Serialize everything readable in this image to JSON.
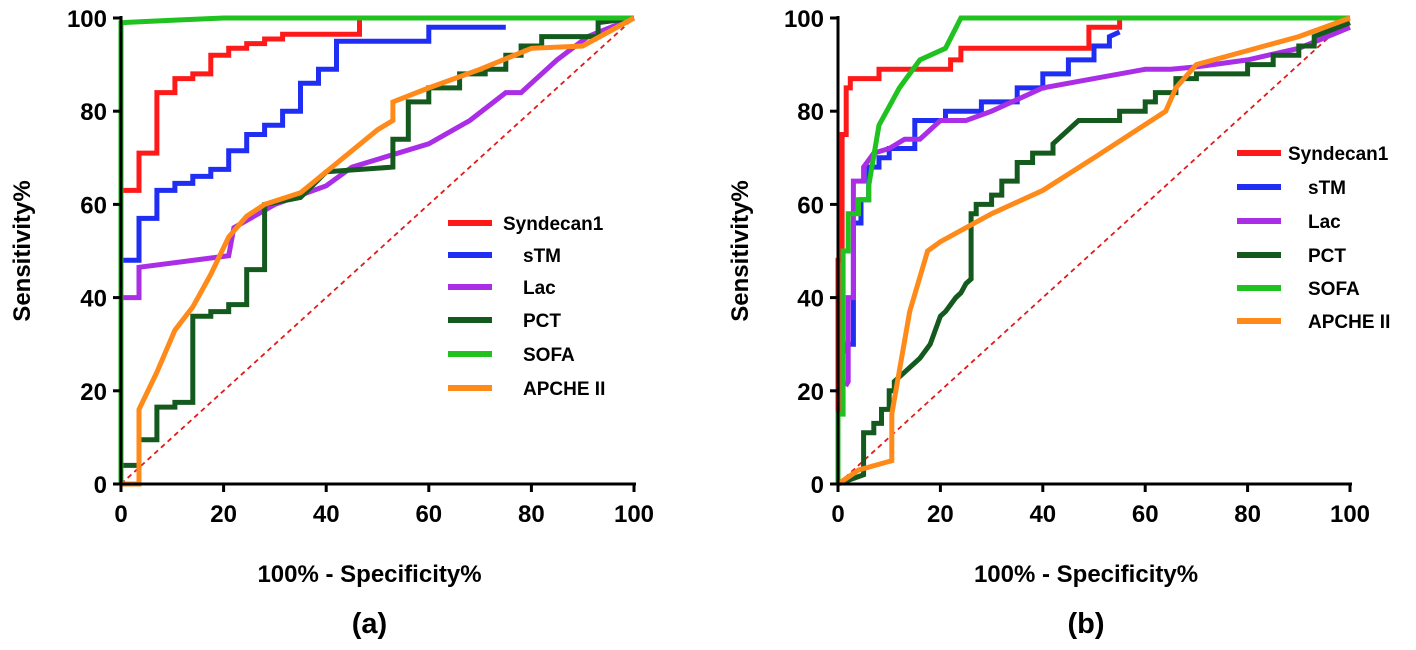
{
  "colors": {
    "syndecan1": "#ff1a1a",
    "stm": "#1f2ef2",
    "lac": "#aa2ee6",
    "pct": "#145a1e",
    "sofa": "#1fc21f",
    "apche2": "#ff8a1a",
    "reference": "#e01b1b"
  },
  "chart_data": [
    {
      "type": "line",
      "panel_label": "(a)",
      "xlabel": "100% - Specificity%",
      "ylabel": "Sensitivity%",
      "xlim": [
        0,
        100
      ],
      "ylim": [
        0,
        100
      ],
      "xticks": [
        "0",
        "20",
        "40",
        "60",
        "80",
        "100"
      ],
      "yticks": [
        "0",
        "20",
        "40",
        "60",
        "80",
        "100"
      ],
      "legend": [
        "Syndecan1",
        "sTM",
        "Lac",
        "PCT",
        "SOFA",
        "APCHE II"
      ],
      "legend_position": "center-right",
      "series": [
        {
          "name": "Syndecan1",
          "color_key": "syndecan1",
          "x": [
            0,
            0,
            3.5,
            3.5,
            7,
            7,
            10.5,
            10.5,
            14,
            14,
            17.5,
            17.5,
            21,
            21,
            24.5,
            24.5,
            28,
            28,
            31.5,
            31.5,
            46.5,
            46.5,
            100
          ],
          "y": [
            0,
            63,
            63,
            71,
            71,
            84,
            84,
            87,
            87,
            88,
            88,
            92,
            92,
            93.5,
            93.5,
            94.5,
            94.5,
            95.5,
            95.5,
            96.5,
            96.5,
            100,
            100
          ]
        },
        {
          "name": "sTM",
          "color_key": "stm",
          "x": [
            0,
            0,
            3.5,
            3.5,
            7,
            7,
            10.5,
            10.5,
            14,
            14,
            17.5,
            17.5,
            21,
            21,
            24.5,
            24.5,
            28,
            28,
            31.5,
            31.5,
            35,
            35,
            38.5,
            38.5,
            42,
            42,
            60,
            60,
            75
          ],
          "y": [
            0,
            48,
            48,
            57,
            57,
            63,
            63,
            64.5,
            64.5,
            66,
            66,
            67.5,
            67.5,
            71.5,
            71.5,
            75,
            75,
            77,
            77,
            80,
            80,
            86,
            86,
            89,
            89,
            95,
            95,
            98,
            98
          ]
        },
        {
          "name": "Lac",
          "color_key": "lac",
          "x": [
            0,
            0,
            3.5,
            3.5,
            21,
            22,
            30,
            40,
            45,
            60,
            68,
            75,
            78,
            80,
            85,
            91,
            100
          ],
          "y": [
            0,
            40,
            40,
            46.5,
            49,
            55,
            60,
            64,
            68,
            73,
            78,
            84,
            84,
            86,
            91,
            96,
            100
          ]
        },
        {
          "name": "PCT",
          "color_key": "pct",
          "x": [
            0,
            0,
            3.5,
            3.5,
            7,
            7,
            10.5,
            10.5,
            14,
            14,
            17.5,
            17.5,
            21,
            21,
            24.5,
            24.5,
            28,
            28,
            35,
            40,
            53,
            53,
            56,
            56,
            60,
            60,
            66,
            66,
            71,
            71,
            75,
            75,
            78,
            78,
            82,
            82,
            93,
            93,
            100
          ],
          "y": [
            0,
            4,
            4,
            9.5,
            9.5,
            16.5,
            16.5,
            17.5,
            17.5,
            36,
            36,
            37,
            37,
            38.5,
            38.5,
            46,
            46,
            60,
            61.5,
            67,
            68,
            74,
            74,
            82,
            82,
            85,
            85,
            88,
            88,
            89,
            89,
            92,
            92,
            94,
            94,
            96,
            96,
            99,
            100
          ]
        },
        {
          "name": "SOFA",
          "color_key": "sofa",
          "x": [
            0,
            0,
            10,
            20,
            60,
            100
          ],
          "y": [
            0,
            99,
            99.5,
            100,
            100,
            100
          ]
        },
        {
          "name": "APCHE II",
          "color_key": "apche2",
          "x": [
            0,
            3.5,
            3.5,
            7,
            10.5,
            14,
            17.5,
            21,
            24.5,
            28,
            35,
            40,
            50,
            53,
            53,
            60,
            70,
            80,
            90,
            100
          ],
          "y": [
            0,
            0,
            16,
            24,
            33,
            38,
            45,
            53,
            57.5,
            60,
            62.5,
            67,
            76,
            78,
            82,
            85,
            89,
            93.5,
            94,
            100
          ]
        }
      ]
    },
    {
      "type": "line",
      "panel_label": "(b)",
      "xlabel": "100% - Specificity%",
      "ylabel": "Sensitivity%",
      "xlim": [
        0,
        100
      ],
      "ylim": [
        0,
        100
      ],
      "xticks": [
        "0",
        "20",
        "40",
        "60",
        "80",
        "100"
      ],
      "yticks": [
        "0",
        "20",
        "40",
        "60",
        "80",
        "100"
      ],
      "legend": [
        "Syndecan1",
        "sTM",
        "Lac",
        "PCT",
        "SOFA",
        "APCHE II"
      ],
      "legend_position": "center-right",
      "series": [
        {
          "name": "Syndecan1",
          "color_key": "syndecan1",
          "x": [
            0,
            0,
            0.8,
            0.8,
            1.6,
            1.6,
            2.4,
            2.4,
            8,
            8,
            22,
            22,
            24,
            24,
            49,
            49,
            55,
            55,
            100
          ],
          "y": [
            0,
            48,
            48,
            75,
            75,
            85,
            85,
            87,
            87,
            89,
            89,
            91,
            91,
            93.5,
            93.5,
            98,
            98,
            100,
            100
          ]
        },
        {
          "name": "sTM",
          "color_key": "stm",
          "x": [
            1.5,
            1.5,
            3,
            3,
            4.5,
            4.5,
            6,
            6,
            8,
            8,
            10,
            10,
            15,
            15,
            21,
            21,
            28,
            28,
            35,
            35,
            40,
            40,
            45,
            45,
            50,
            50,
            53,
            53,
            55
          ],
          "y": [
            28,
            30,
            30,
            56,
            56,
            61,
            61,
            68,
            68,
            70,
            70,
            72,
            72,
            78,
            78,
            80,
            80,
            82,
            82,
            85,
            85,
            88,
            88,
            91,
            91,
            94,
            94,
            96,
            97
          ]
        },
        {
          "name": "Lac",
          "color_key": "lac",
          "x": [
            1.5,
            2,
            2,
            3,
            3,
            5,
            5,
            7,
            10,
            13,
            16,
            20,
            25,
            30,
            40,
            50,
            60,
            65,
            70,
            80,
            90,
            100
          ],
          "y": [
            21,
            22,
            40,
            40,
            65,
            65,
            68,
            71,
            72,
            74,
            74,
            78,
            78,
            80,
            85,
            87,
            89,
            89,
            89.5,
            91,
            93.5,
            98
          ]
        },
        {
          "name": "PCT",
          "color_key": "pct",
          "x": [
            0,
            5,
            5,
            7,
            7,
            8.5,
            8.5,
            10,
            10,
            11,
            11,
            13,
            16,
            18,
            19,
            20,
            21,
            23,
            24,
            25,
            26,
            26,
            27,
            27,
            30,
            30,
            32,
            32,
            35,
            35,
            38,
            38,
            42,
            42,
            47,
            55,
            55,
            60,
            60,
            62,
            62,
            66,
            66,
            70,
            70,
            80,
            80,
            85,
            85,
            90,
            90,
            93,
            93,
            100
          ],
          "y": [
            0,
            2,
            11,
            11,
            13,
            13,
            16,
            16,
            20,
            20,
            22,
            24,
            27,
            30,
            33,
            36,
            37,
            40,
            41,
            43,
            44,
            58,
            58,
            60,
            60,
            62,
            62,
            65,
            65,
            69,
            69,
            71,
            71,
            73,
            78,
            78,
            80,
            80,
            82,
            82,
            84,
            84,
            87,
            87,
            88,
            88,
            90,
            90,
            92,
            92,
            94,
            94,
            96,
            99
          ]
        },
        {
          "name": "SOFA",
          "color_key": "sofa",
          "x": [
            0,
            0,
            1,
            1,
            2,
            2,
            4,
            4,
            6,
            6,
            8,
            12,
            16,
            21,
            24,
            24,
            60,
            100
          ],
          "y": [
            0,
            15,
            15,
            50,
            50,
            58,
            58,
            61,
            61,
            64,
            77,
            85,
            91,
            93.5,
            100,
            100,
            100,
            100
          ]
        },
        {
          "name": "APCHE II",
          "color_key": "apche2",
          "x": [
            0,
            4,
            10.5,
            10.5,
            14,
            17.5,
            20,
            25,
            30,
            40,
            50,
            64,
            66,
            70,
            80,
            90,
            100
          ],
          "y": [
            0,
            3,
            5,
            15,
            37,
            50,
            52,
            55,
            58,
            63,
            70,
            80,
            85,
            90,
            93,
            96,
            100
          ]
        }
      ]
    }
  ]
}
